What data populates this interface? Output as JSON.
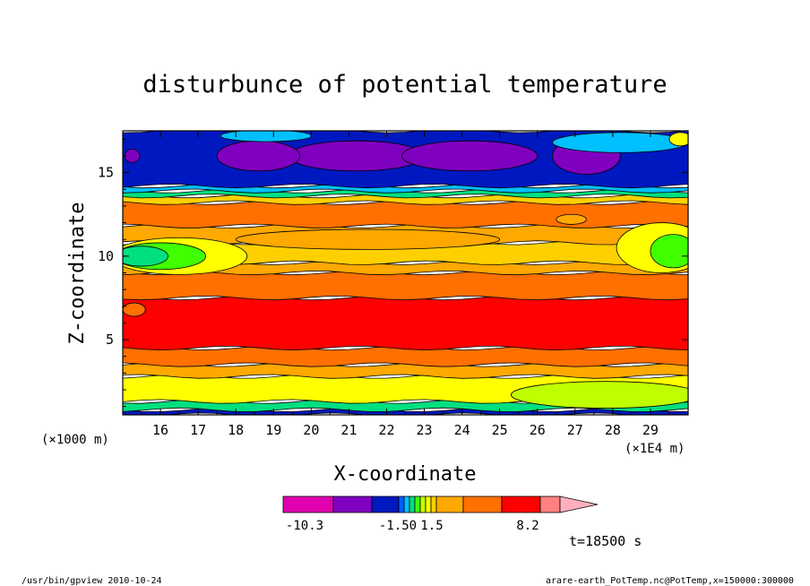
{
  "chart_data": {
    "type": "heatmap",
    "title": "disturbunce of potential temperature",
    "xlabel": "X-coordinate",
    "ylabel": "Z-coordinate",
    "x_unit": "(×1E4 m)",
    "y_unit": "(×1000 m)",
    "x_ticks": [
      "16",
      "17",
      "18",
      "19",
      "20",
      "21",
      "22",
      "23",
      "24",
      "25",
      "26",
      "27",
      "28",
      "29"
    ],
    "y_ticks": [
      "5",
      "10",
      "15"
    ],
    "xlim": [
      15.0,
      30.0
    ],
    "ylim": [
      0.5,
      17.5
    ],
    "colorbar": {
      "colors": [
        "#e000b0",
        "#8000c0",
        "#0018c0",
        "#0060ff",
        "#00c0ff",
        "#00e080",
        "#40ff00",
        "#c0ff00",
        "#ffff00",
        "#ffd000",
        "#ffa800",
        "#ff7000",
        "#ff0000",
        "#ff8080",
        "#ffb0c0"
      ],
      "labels": [
        "-10.3",
        "-1.50",
        "1.5",
        "8.2"
      ]
    },
    "bands": [
      {
        "z0": 0.5,
        "z1": 0.8,
        "color": "#0018c0"
      },
      {
        "z0": 0.8,
        "z1": 1.3,
        "color": "#00e080"
      },
      {
        "z0": 1.3,
        "z1": 2.8,
        "color": "#ffff00"
      },
      {
        "z0": 2.8,
        "z1": 3.5,
        "color": "#ffa800"
      },
      {
        "z0": 3.5,
        "z1": 4.5,
        "color": "#ff7000"
      },
      {
        "z0": 4.5,
        "z1": 7.5,
        "color": "#ff0000"
      },
      {
        "z0": 7.5,
        "z1": 9.0,
        "color": "#ff7000"
      },
      {
        "z0": 9.0,
        "z1": 9.6,
        "color": "#ffa800"
      },
      {
        "z0": 9.6,
        "z1": 10.8,
        "color": "#ffd000"
      },
      {
        "z0": 10.8,
        "z1": 11.8,
        "color": "#ffa800"
      },
      {
        "z0": 11.8,
        "z1": 13.2,
        "color": "#ff7000"
      },
      {
        "z0": 13.2,
        "z1": 13.6,
        "color": "#ffd000"
      },
      {
        "z0": 13.6,
        "z1": 13.9,
        "color": "#00e080"
      },
      {
        "z0": 13.9,
        "z1": 14.2,
        "color": "#00c0ff"
      },
      {
        "z0": 14.2,
        "z1": 17.5,
        "color": "#0018c0"
      }
    ],
    "blobs": [
      {
        "x": 21.2,
        "z": 16.0,
        "rx": 1.8,
        "rz": 0.9,
        "color": "#8000c0"
      },
      {
        "x": 24.2,
        "z": 16.0,
        "rx": 1.8,
        "rz": 0.9,
        "color": "#8000c0"
      },
      {
        "x": 27.3,
        "z": 16.0,
        "rx": 0.9,
        "rz": 1.1,
        "color": "#8000c0"
      },
      {
        "x": 15.25,
        "z": 16.0,
        "rx": 0.2,
        "rz": 0.4,
        "color": "#8000c0"
      },
      {
        "x": 18.6,
        "z": 16.0,
        "rx": 1.1,
        "rz": 0.9,
        "color": "#8000c0"
      },
      {
        "x": 16.5,
        "z": 10.0,
        "rx": 1.8,
        "rz": 1.1,
        "color": "#ffff00"
      },
      {
        "x": 16.0,
        "z": 10.0,
        "rx": 1.2,
        "rz": 0.8,
        "color": "#40ff00"
      },
      {
        "x": 15.5,
        "z": 10.0,
        "rx": 0.7,
        "rz": 0.6,
        "color": "#00e080"
      },
      {
        "x": 29.3,
        "z": 10.5,
        "rx": 1.2,
        "rz": 1.5,
        "color": "#ffff00"
      },
      {
        "x": 29.6,
        "z": 10.3,
        "rx": 0.6,
        "rz": 1.0,
        "color": "#40ff00"
      },
      {
        "x": 21.5,
        "z": 11.0,
        "rx": 3.5,
        "rz": 0.6,
        "color": "#ffa800"
      },
      {
        "x": 27.8,
        "z": 1.7,
        "rx": 2.5,
        "rz": 0.8,
        "color": "#c0ff00"
      },
      {
        "x": 15.3,
        "z": 6.8,
        "rx": 0.3,
        "rz": 0.4,
        "color": "#ff7000"
      },
      {
        "x": 26.9,
        "z": 12.2,
        "rx": 0.4,
        "rz": 0.3,
        "color": "#ffa800"
      },
      {
        "x": 28.2,
        "z": 16.8,
        "rx": 1.8,
        "rz": 0.6,
        "color": "#00c0ff"
      },
      {
        "x": 18.8,
        "z": 17.2,
        "rx": 1.2,
        "rz": 0.35,
        "color": "#00c0ff"
      },
      {
        "x": 29.8,
        "z": 17.0,
        "rx": 0.3,
        "rz": 0.4,
        "color": "#ffff00"
      }
    ]
  },
  "time_label": "t=18500 s",
  "footer_left": "/usr/bin/gpview   2010-10-24",
  "footer_right": "arare-earth_PotTemp.nc@PotTemp,x=150000:300000"
}
